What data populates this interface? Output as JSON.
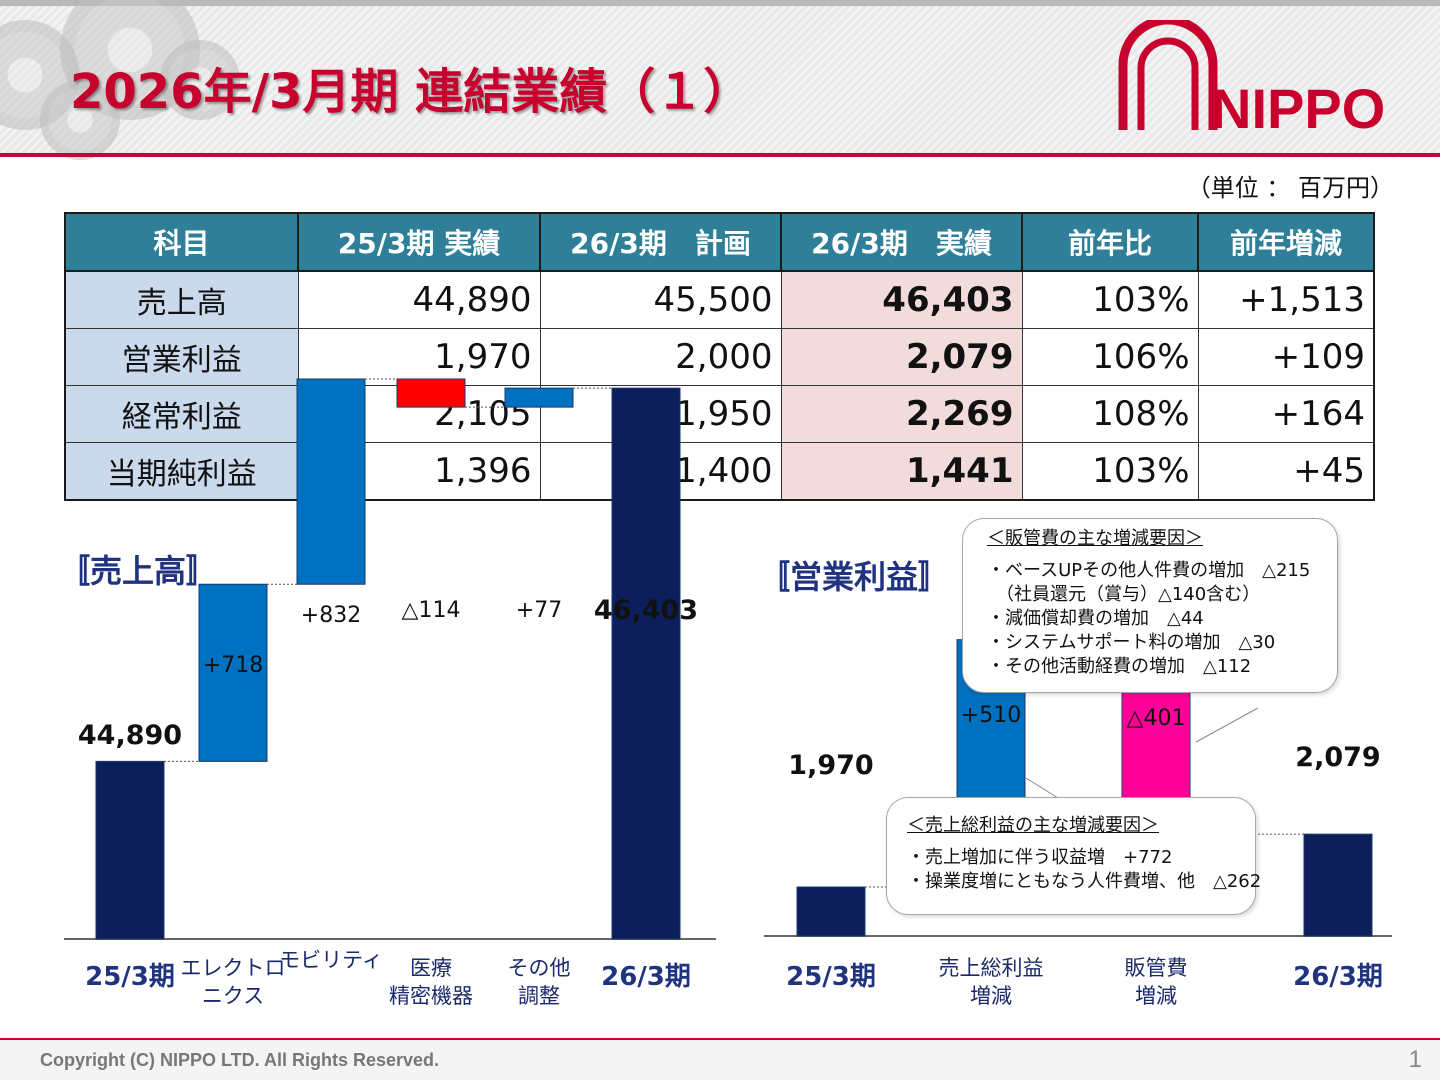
{
  "header": {
    "title": "2026年/3月期 連結業績（１）",
    "logo_text": "NIPPO",
    "unit": "（単位 ： 百万円）"
  },
  "table": {
    "headers": [
      "科目",
      "25/3期 実績",
      "26/3期　計画",
      "26/3期　実績",
      "前年比",
      "前年増減"
    ],
    "rows": [
      [
        "売上高",
        "44,890",
        "45,500",
        "46,403",
        "103%",
        "+1,513"
      ],
      [
        "営業利益",
        "1,970",
        "2,000",
        "2,079",
        "106%",
        "+109"
      ],
      [
        "経常利益",
        "2,105",
        "1,950",
        "2,269",
        "108%",
        "+164"
      ],
      [
        "当期純利益",
        "1,396",
        "1,400",
        "1,441",
        "103%",
        "+45"
      ]
    ]
  },
  "sales_section_title": "〚売上高〛",
  "op_section_title": "〚営業利益〛",
  "chart_data": [
    {
      "type": "bar",
      "subtype": "waterfall",
      "title": "〚売上高〛",
      "categories": [
        "25/3期",
        "エレクトロニクス",
        "モビリティ",
        "医療精密機器",
        "その他調整",
        "26/3期"
      ],
      "category_lines": [
        [
          "25/3期"
        ],
        [
          "エレクトロ",
          "ニクス"
        ],
        [
          "モビリティ"
        ],
        [
          "医療",
          "精密機器"
        ],
        [
          "その他",
          "調整"
        ],
        [
          "26/3期"
        ]
      ],
      "values": [
        44890,
        718,
        832,
        -114,
        77,
        46403
      ],
      "bar_kinds": [
        "total",
        "delta",
        "delta",
        "delta",
        "delta",
        "total"
      ],
      "labels": [
        "44,890",
        "+718",
        "+832",
        "△114",
        "+77",
        "46,403"
      ],
      "colors": {
        "total": "#0c1f5c",
        "increase": "#0070c0",
        "decrease": "#ff0000"
      }
    },
    {
      "type": "bar",
      "subtype": "waterfall",
      "title": "〚営業利益〛",
      "categories": [
        "25/3期",
        "売上総利益増減",
        "販管費増減",
        "26/3期"
      ],
      "category_lines": [
        [
          "25/3期"
        ],
        [
          "売上総利益",
          "増減"
        ],
        [
          "販管費",
          "増減"
        ],
        [
          "26/3期"
        ]
      ],
      "values": [
        1970,
        510,
        -401,
        2079
      ],
      "bar_kinds": [
        "total",
        "delta",
        "delta",
        "total"
      ],
      "labels": [
        "1,970",
        "+510",
        "△401",
        "2,079"
      ],
      "colors": {
        "total": "#0c1f5c",
        "increase": "#0070c0",
        "decrease": "#ff0099"
      }
    }
  ],
  "notes": {
    "sga": {
      "heading": "＜販管費の主な増減要因＞",
      "lines": [
        "・ベースUPその他人件費の増加　△215",
        "　（社員還元（賞与）△140含む）",
        "・減価償却費の増加　△44",
        "・システムサポート料の増加　△30",
        "・その他活動経費の増加　△112"
      ]
    },
    "gross": {
      "heading": "＜売上総利益の主な増減要因＞",
      "lines": [
        "・売上増加に伴う収益増　+772",
        "・操業度増にともなう人件費増、他　△262"
      ]
    }
  },
  "footer": {
    "copyright": "Copyright (C)  NIPPO LTD. All Rights Reserved.",
    "page": "1"
  }
}
